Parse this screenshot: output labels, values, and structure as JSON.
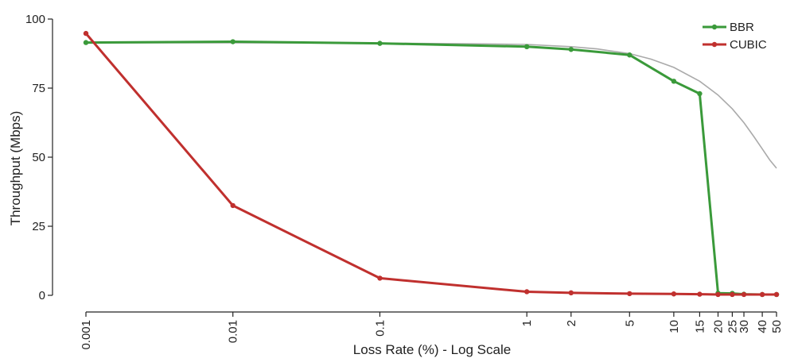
{
  "chart_data": {
    "type": "line",
    "xlabel": "Loss Rate (%) - Log Scale",
    "ylabel": "Throughput (Mbps)",
    "x_scale": "log",
    "xlim": [
      0.001,
      50
    ],
    "ylim": [
      0,
      100
    ],
    "x_ticks": [
      0.001,
      0.01,
      0.1,
      1,
      2,
      5,
      10,
      15,
      20,
      25,
      30,
      40,
      50
    ],
    "x_tick_labels": [
      "0.001",
      "0.01",
      "0.1",
      "1",
      "2",
      "5",
      "10",
      "15",
      "20",
      "25",
      "30",
      "40",
      "50"
    ],
    "y_ticks": [
      0,
      25,
      50,
      75,
      100
    ],
    "y_tick_labels": [
      "0",
      "25",
      "50",
      "75",
      "100"
    ],
    "grid": false,
    "legend_position": "top-right",
    "series": [
      {
        "name": "BBR",
        "color": "#3a9a3a",
        "x": [
          0.001,
          0.01,
          0.1,
          1,
          2,
          5,
          10,
          15,
          20,
          25,
          30,
          40,
          50
        ],
        "y": [
          91.5,
          91.8,
          91.2,
          90.0,
          89.0,
          87.0,
          77.5,
          73.0,
          0.8,
          0.7,
          0.4,
          0.3,
          0.3
        ]
      },
      {
        "name": "CUBIC",
        "color": "#c0302e",
        "x": [
          0.001,
          0.01,
          0.1,
          1,
          2,
          5,
          10,
          15,
          20,
          25,
          30,
          40,
          50
        ],
        "y": [
          94.8,
          32.5,
          6.2,
          1.3,
          0.9,
          0.6,
          0.5,
          0.4,
          0.3,
          0.3,
          0.3,
          0.3,
          0.3
        ]
      }
    ],
    "reference_curve": {
      "color": "#aaaaaa",
      "x": [
        0.001,
        0.01,
        0.1,
        0.5,
        1,
        2,
        3,
        5,
        7,
        10,
        15,
        20,
        25,
        30,
        35,
        40,
        45,
        50
      ],
      "y": [
        91.4,
        91.4,
        91.3,
        91.0,
        90.8,
        90.0,
        89.2,
        87.5,
        85.5,
        82.5,
        77.5,
        72.5,
        67.5,
        62.5,
        57.5,
        53.0,
        49.0,
        46.0
      ]
    }
  }
}
